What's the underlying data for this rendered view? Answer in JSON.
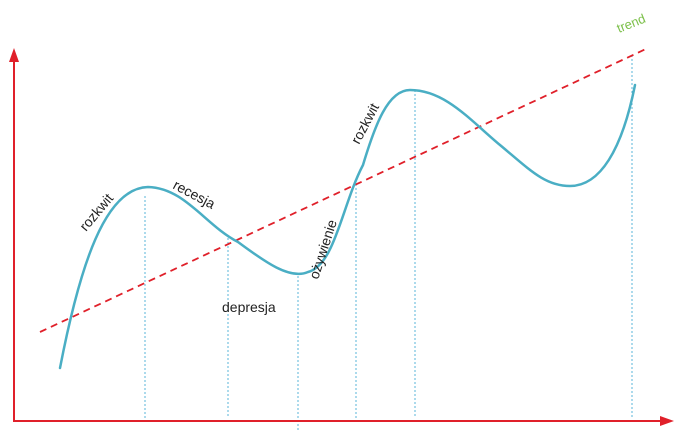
{
  "labels": {
    "trend": "trend",
    "rozkwit_1": "rozkwit",
    "recesja": "recesja",
    "depresja": "depresja",
    "ozywienie": "ożywienie",
    "rozkwit_2": "rozkwit"
  },
  "colors": {
    "axes": "#e0202a",
    "cycle_curve": "#4aaec4",
    "trend_line": "#e0202a",
    "trend_label": "#7cc04a",
    "guide_lines": "#5ab6d8",
    "label_text": "#222222"
  }
}
